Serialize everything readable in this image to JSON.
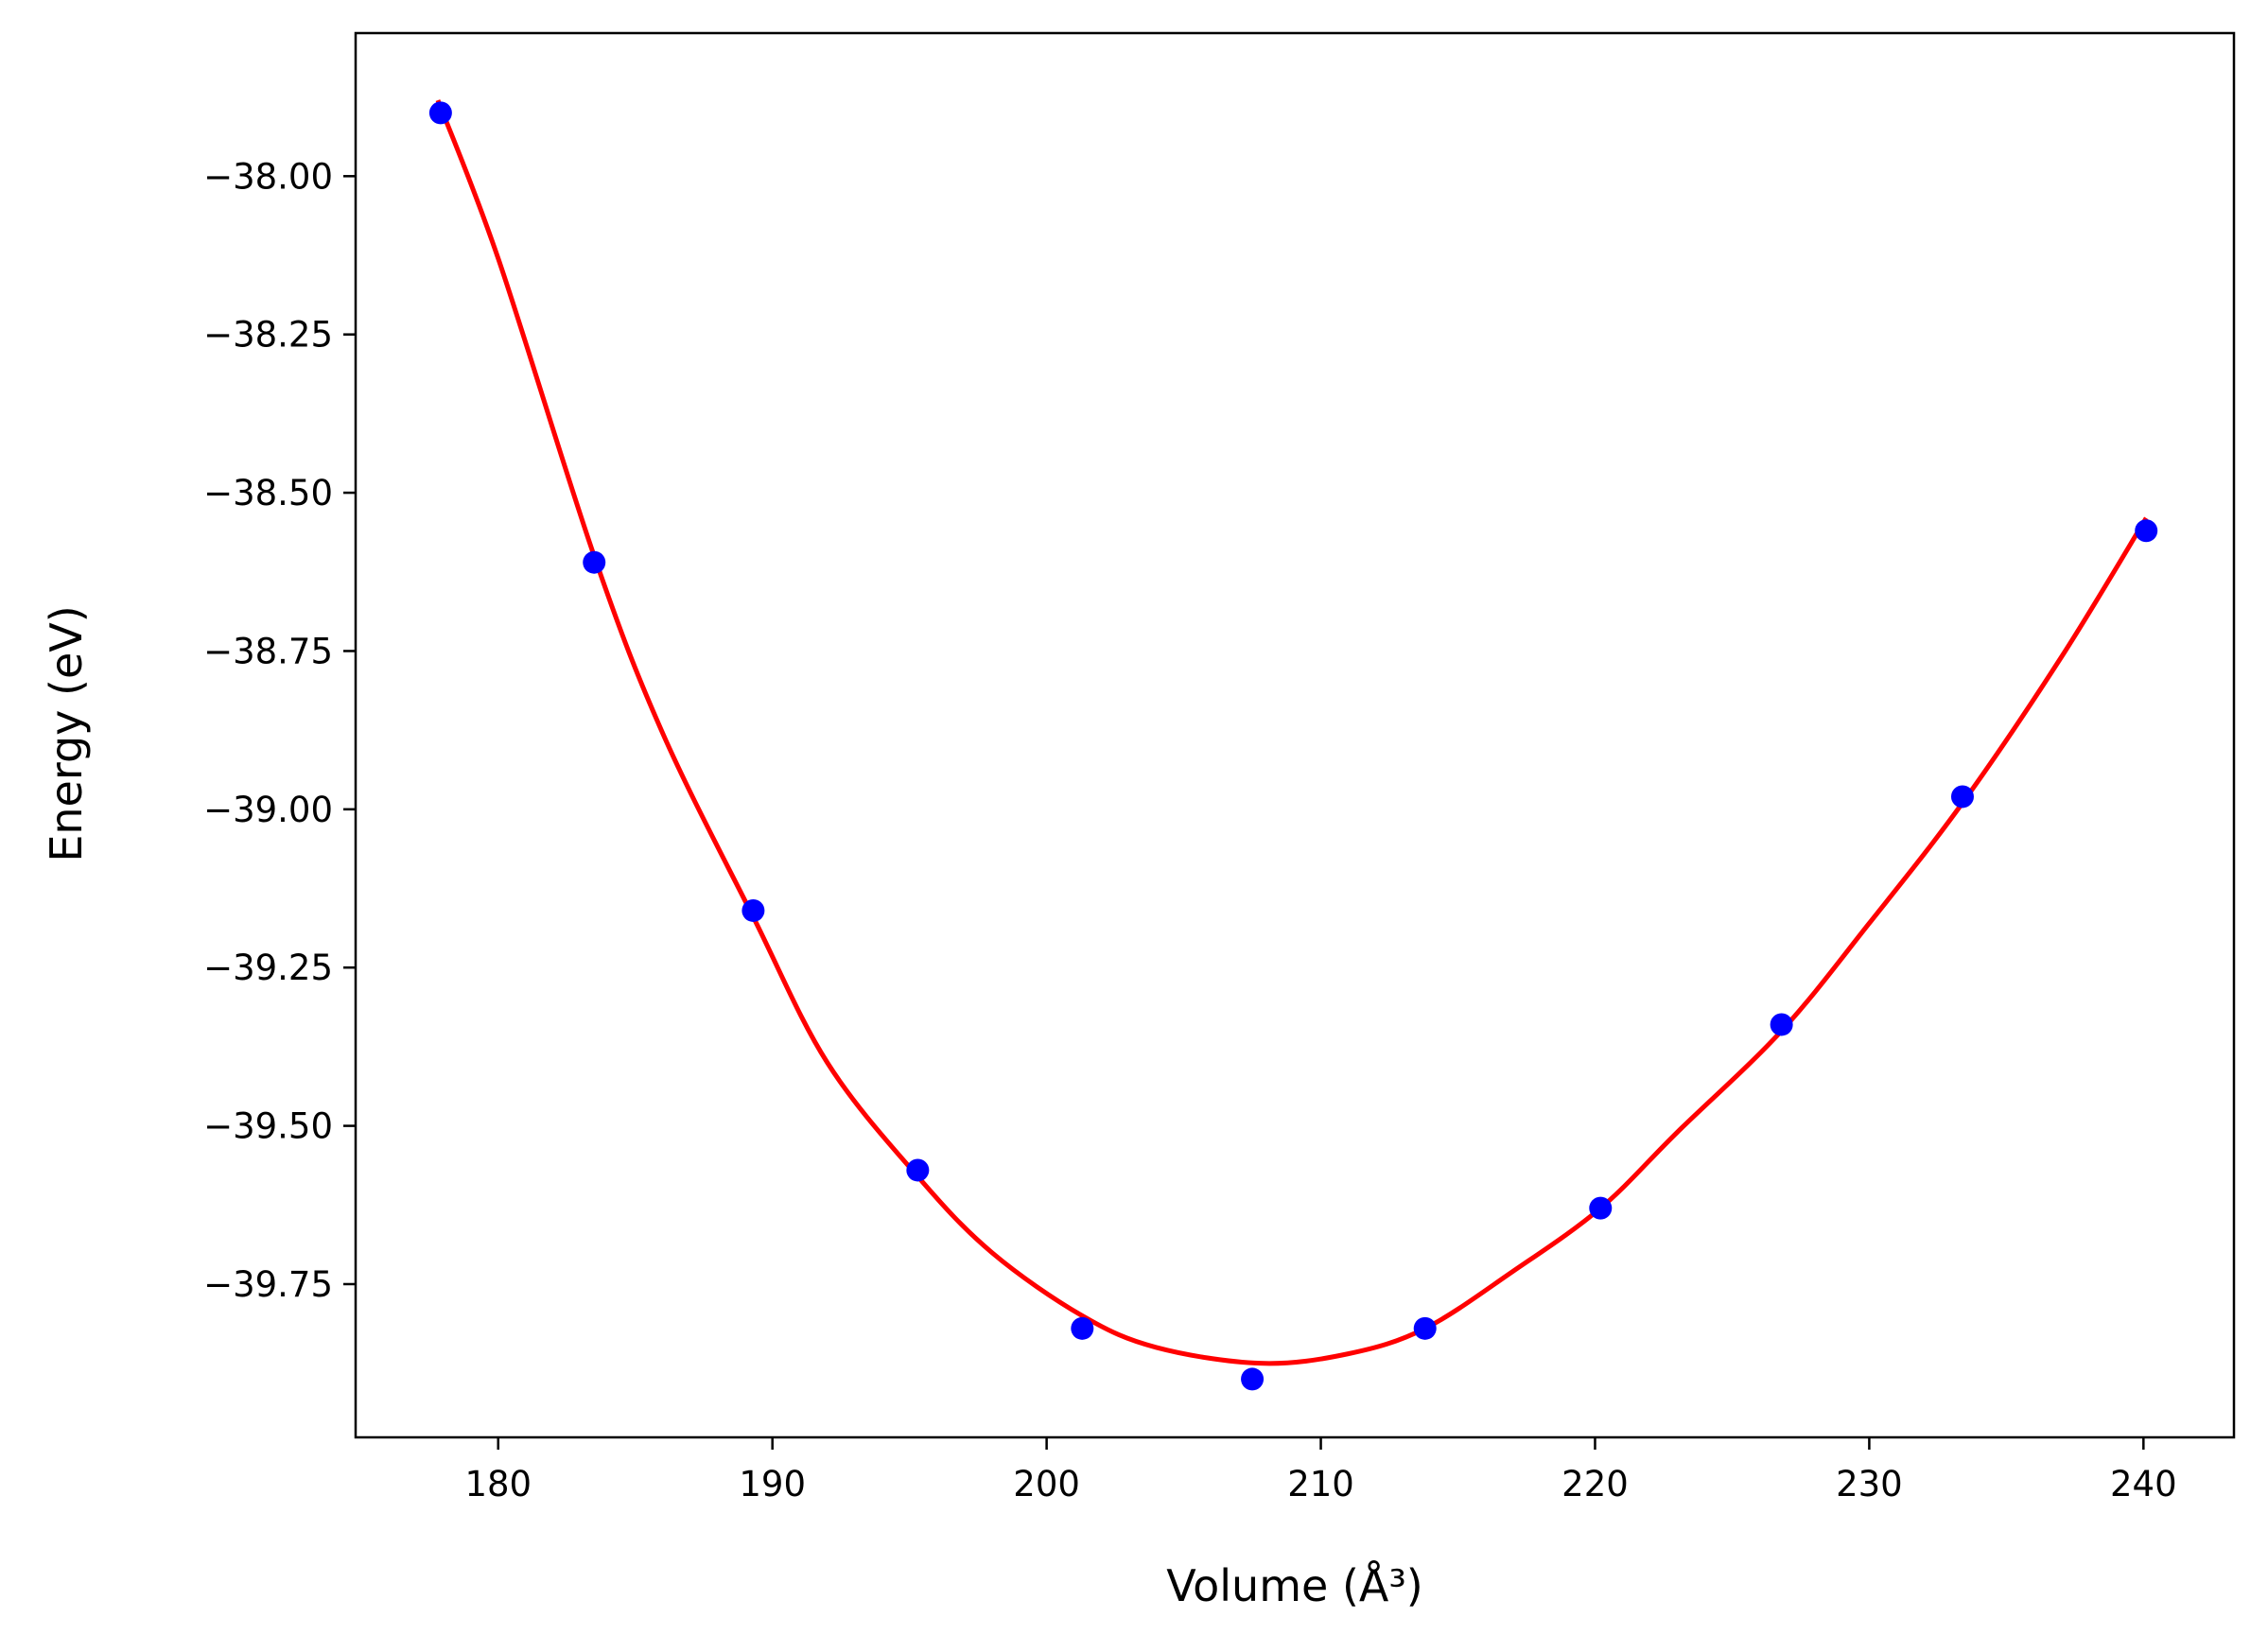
{
  "chart_data": {
    "type": "scatter",
    "xlabel": "Volume (Å³)",
    "ylabel": "Energy (eV)",
    "xlim": [
      174.8,
      243.3
    ],
    "ylim": [
      -39.992,
      -37.774
    ],
    "xticks": [
      180,
      190,
      200,
      210,
      220,
      230,
      240
    ],
    "xtick_labels": [
      "180",
      "190",
      "200",
      "210",
      "220",
      "230",
      "240"
    ],
    "yticks": [
      -38.0,
      -38.25,
      -38.5,
      -38.75,
      -39.0,
      -39.25,
      -39.5,
      -39.75
    ],
    "ytick_labels": [
      "−38.00",
      "−38.25",
      "−38.50",
      "−38.75",
      "−39.00",
      "−39.25",
      "−39.50",
      "−39.75"
    ],
    "grid": false,
    "legend": "none",
    "series": [
      {
        "kind": "points",
        "color": "#0000ff",
        "x": [
          177.9,
          183.5,
          189.3,
          195.3,
          201.3,
          207.5,
          213.8,
          220.2,
          226.8,
          233.4,
          240.1
        ],
        "y": [
          -37.9,
          -38.61,
          -39.16,
          -39.57,
          -39.82,
          -39.9,
          -39.82,
          -39.63,
          -39.34,
          -38.98,
          -38.56
        ]
      },
      {
        "kind": "fit-curve",
        "color": "#ff0000",
        "x": [
          177.8,
          180,
          183.5,
          186,
          189.3,
          192,
          195.3,
          198,
          201.3,
          204,
          207.8,
          211,
          213.8,
          217,
          220.2,
          223,
          226.8,
          230,
          233.4,
          237,
          240.1
        ],
        "y": [
          -37.88,
          -38.13,
          -38.6,
          -38.88,
          -39.17,
          -39.4,
          -39.58,
          -39.7,
          -39.8,
          -39.85,
          -39.875,
          -39.86,
          -39.82,
          -39.73,
          -39.63,
          -39.51,
          -39.35,
          -39.18,
          -38.99,
          -38.76,
          -38.54
        ]
      }
    ]
  }
}
